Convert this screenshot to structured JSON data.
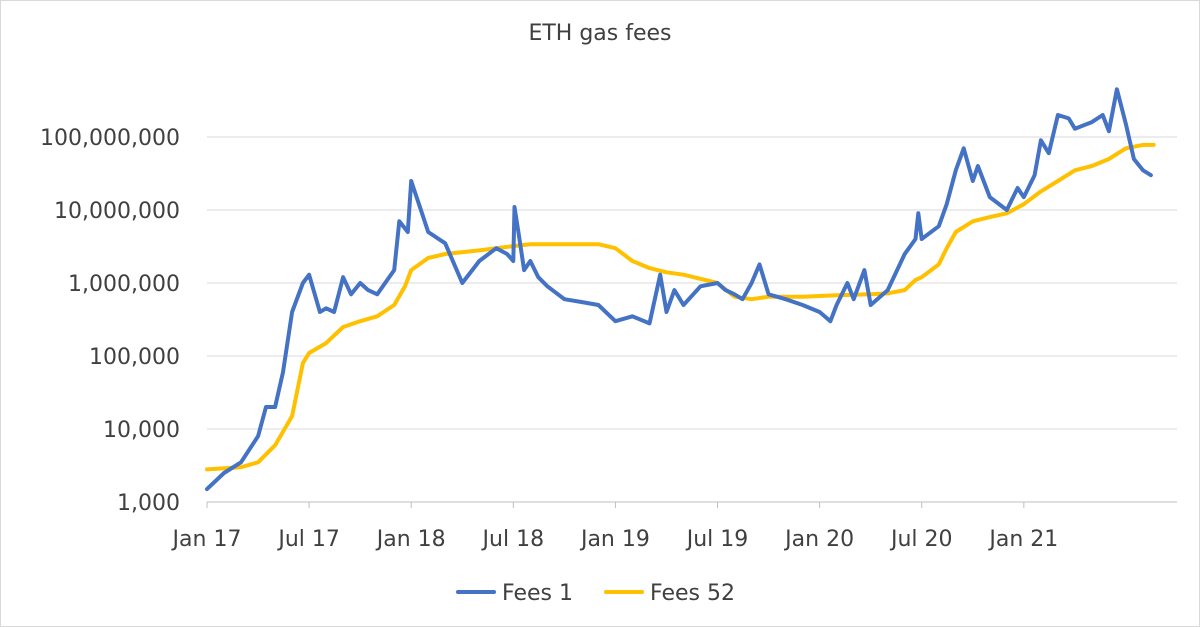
{
  "chart_data": {
    "type": "line",
    "title": "ETH gas fees",
    "xlabel": "",
    "ylabel": "",
    "y_scale": "log",
    "ylim": [
      1000,
      1000000000
    ],
    "y_ticks": [
      1000,
      10000,
      100000,
      1000000,
      10000000,
      100000000
    ],
    "y_tick_labels": [
      "1,000",
      "10,000",
      "100,000",
      "1,000,000",
      "10,000,000",
      "100,000,000"
    ],
    "x_tick_labels": [
      "Jan 17",
      "Jul 17",
      "Jan 18",
      "Jul 18",
      "Jan 19",
      "Jul 19",
      "Jan 20",
      "Jul 20",
      "Jan 21"
    ],
    "x_tick_dates": [
      "2017-01",
      "2017-07",
      "2018-01",
      "2018-07",
      "2019-01",
      "2019-07",
      "2020-01",
      "2020-07",
      "2021-01"
    ],
    "xlim": [
      "2017-01",
      "2021-10"
    ],
    "grid": "horizontal",
    "legend_position": "bottom",
    "series": [
      {
        "name": "Fees 1",
        "color": "#4472C4",
        "points": [
          [
            "2017-01",
            1500
          ],
          [
            "2017-02",
            2500
          ],
          [
            "2017-03",
            3500
          ],
          [
            "2017-04",
            8000
          ],
          [
            "2017-04-15",
            20000
          ],
          [
            "2017-05",
            20000
          ],
          [
            "2017-05-15",
            60000
          ],
          [
            "2017-06",
            400000
          ],
          [
            "2017-06-20",
            1000000
          ],
          [
            "2017-07",
            1300000
          ],
          [
            "2017-07-20",
            400000
          ],
          [
            "2017-08",
            450000
          ],
          [
            "2017-08-15",
            400000
          ],
          [
            "2017-09",
            1200000
          ],
          [
            "2017-09-15",
            700000
          ],
          [
            "2017-10",
            1000000
          ],
          [
            "2017-10-15",
            800000
          ],
          [
            "2017-11",
            700000
          ],
          [
            "2017-12",
            1500000
          ],
          [
            "2017-12-10",
            7000000
          ],
          [
            "2017-12-25",
            5000000
          ],
          [
            "2018-01",
            25000000
          ],
          [
            "2018-01-20",
            9000000
          ],
          [
            "2018-02",
            5000000
          ],
          [
            "2018-03",
            3500000
          ],
          [
            "2018-04",
            1000000
          ],
          [
            "2018-05",
            2000000
          ],
          [
            "2018-06",
            3000000
          ],
          [
            "2018-06-20",
            2500000
          ],
          [
            "2018-07",
            2000000
          ],
          [
            "2018-07-03",
            11000000
          ],
          [
            "2018-07-10",
            5000000
          ],
          [
            "2018-07-20",
            1500000
          ],
          [
            "2018-08",
            2000000
          ],
          [
            "2018-08-15",
            1200000
          ],
          [
            "2018-09",
            900000
          ],
          [
            "2018-10",
            600000
          ],
          [
            "2018-11",
            550000
          ],
          [
            "2018-12",
            500000
          ],
          [
            "2019-01",
            300000
          ],
          [
            "2019-02",
            350000
          ],
          [
            "2019-03",
            280000
          ],
          [
            "2019-03-20",
            1300000
          ],
          [
            "2019-04",
            400000
          ],
          [
            "2019-04-15",
            800000
          ],
          [
            "2019-05",
            500000
          ],
          [
            "2019-06",
            900000
          ],
          [
            "2019-07",
            1000000
          ],
          [
            "2019-07-15",
            800000
          ],
          [
            "2019-08",
            700000
          ],
          [
            "2019-08-15",
            600000
          ],
          [
            "2019-09",
            1000000
          ],
          [
            "2019-09-15",
            1800000
          ],
          [
            "2019-10",
            700000
          ],
          [
            "2019-11",
            600000
          ],
          [
            "2019-12",
            500000
          ],
          [
            "2020-01",
            400000
          ],
          [
            "2020-01-20",
            300000
          ],
          [
            "2020-02",
            500000
          ],
          [
            "2020-02-20",
            1000000
          ],
          [
            "2020-03",
            600000
          ],
          [
            "2020-03-20",
            1500000
          ],
          [
            "2020-04",
            500000
          ],
          [
            "2020-05",
            800000
          ],
          [
            "2020-06",
            2500000
          ],
          [
            "2020-06-20",
            4000000
          ],
          [
            "2020-06-25",
            9000000
          ],
          [
            "2020-07",
            4000000
          ],
          [
            "2020-08",
            6000000
          ],
          [
            "2020-08-15",
            12000000
          ],
          [
            "2020-09",
            35000000
          ],
          [
            "2020-09-15",
            70000000
          ],
          [
            "2020-10",
            25000000
          ],
          [
            "2020-10-10",
            40000000
          ],
          [
            "2020-11",
            15000000
          ],
          [
            "2020-12",
            10000000
          ],
          [
            "2020-12-20",
            20000000
          ],
          [
            "2021-01",
            15000000
          ],
          [
            "2021-01-20",
            30000000
          ],
          [
            "2021-02",
            90000000
          ],
          [
            "2021-02-15",
            60000000
          ],
          [
            "2021-03",
            200000000
          ],
          [
            "2021-03-20",
            180000000
          ],
          [
            "2021-04",
            130000000
          ],
          [
            "2021-05",
            160000000
          ],
          [
            "2021-05-20",
            200000000
          ],
          [
            "2021-06",
            120000000
          ],
          [
            "2021-06-15",
            450000000
          ],
          [
            "2021-07",
            150000000
          ],
          [
            "2021-07-15",
            50000000
          ],
          [
            "2021-08",
            35000000
          ],
          [
            "2021-08-15",
            30000000
          ]
        ]
      },
      {
        "name": "Fees 52",
        "color": "#FFC000",
        "points": [
          [
            "2017-01",
            2800
          ],
          [
            "2017-03",
            3000
          ],
          [
            "2017-04",
            3500
          ],
          [
            "2017-05",
            6000
          ],
          [
            "2017-06",
            15000
          ],
          [
            "2017-06-20",
            80000
          ],
          [
            "2017-07",
            110000
          ],
          [
            "2017-08",
            150000
          ],
          [
            "2017-09",
            250000
          ],
          [
            "2017-10",
            300000
          ],
          [
            "2017-11",
            350000
          ],
          [
            "2017-12",
            500000
          ],
          [
            "2017-12-20",
            900000
          ],
          [
            "2018-01",
            1500000
          ],
          [
            "2018-02",
            2200000
          ],
          [
            "2018-03",
            2500000
          ],
          [
            "2018-05",
            2800000
          ],
          [
            "2018-07",
            3200000
          ],
          [
            "2018-08",
            3400000
          ],
          [
            "2018-12",
            3400000
          ],
          [
            "2019-01",
            3000000
          ],
          [
            "2019-02",
            2000000
          ],
          [
            "2019-03",
            1600000
          ],
          [
            "2019-04",
            1400000
          ],
          [
            "2019-05",
            1300000
          ],
          [
            "2019-07",
            1000000
          ],
          [
            "2019-08",
            650000
          ],
          [
            "2019-09",
            600000
          ],
          [
            "2019-10",
            650000
          ],
          [
            "2019-12",
            650000
          ],
          [
            "2020-02",
            680000
          ],
          [
            "2020-04",
            700000
          ],
          [
            "2020-05",
            720000
          ],
          [
            "2020-06",
            800000
          ],
          [
            "2020-06-20",
            1100000
          ],
          [
            "2020-07",
            1200000
          ],
          [
            "2020-08",
            1800000
          ],
          [
            "2020-08-15",
            3000000
          ],
          [
            "2020-09",
            5000000
          ],
          [
            "2020-10",
            7000000
          ],
          [
            "2020-11",
            8000000
          ],
          [
            "2020-12",
            9000000
          ],
          [
            "2021-01",
            12000000
          ],
          [
            "2021-02",
            18000000
          ],
          [
            "2021-03",
            25000000
          ],
          [
            "2021-04",
            35000000
          ],
          [
            "2021-05",
            40000000
          ],
          [
            "2021-06",
            50000000
          ],
          [
            "2021-07",
            70000000
          ],
          [
            "2021-08",
            78000000
          ],
          [
            "2021-08-20",
            78000000
          ]
        ]
      }
    ]
  }
}
